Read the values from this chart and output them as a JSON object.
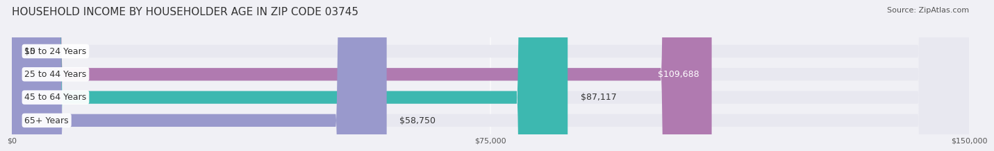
{
  "title": "HOUSEHOLD INCOME BY HOUSEHOLDER AGE IN ZIP CODE 03745",
  "source": "Source: ZipAtlas.com",
  "categories": [
    "15 to 24 Years",
    "25 to 44 Years",
    "45 to 64 Years",
    "65+ Years"
  ],
  "values": [
    0,
    109688,
    87117,
    58750
  ],
  "bar_colors": [
    "#a8c4e0",
    "#b07ab0",
    "#3db8b0",
    "#9999cc"
  ],
  "label_values": [
    "$0",
    "$109,688",
    "$87,117",
    "$58,750"
  ],
  "xlim": [
    0,
    150000
  ],
  "xticks": [
    0,
    75000,
    150000
  ],
  "xtick_labels": [
    "$0",
    "$75,000",
    "$150,000"
  ],
  "background_color": "#f0f0f5",
  "bar_background_color": "#e8e8f0",
  "title_fontsize": 11,
  "source_fontsize": 8,
  "bar_height": 0.55,
  "label_fontsize": 9,
  "category_fontsize": 9
}
